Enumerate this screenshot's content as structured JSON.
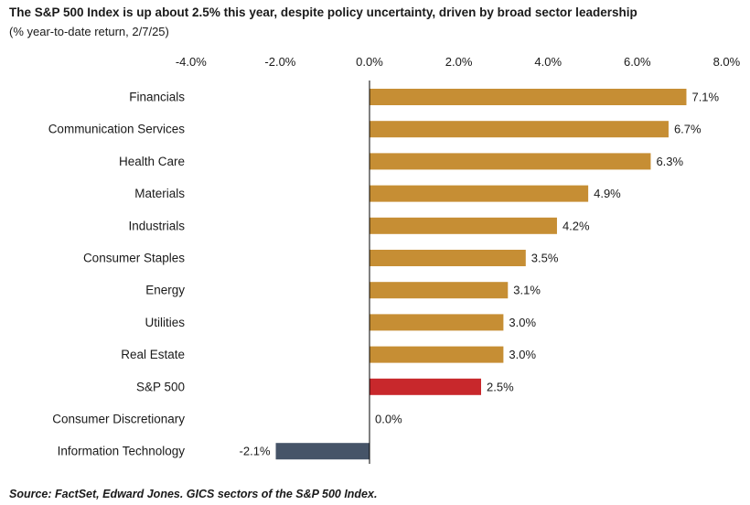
{
  "title": "The S&P 500 Index is up about 2.5% this year, despite policy uncertainty, driven by broad sector leadership",
  "subtitle": "(% year-to-date return, 2/7/25)",
  "source": "Source: FactSet, Edward Jones. GICS sectors of the S&P 500 Index.",
  "colors": {
    "sector": "#C68E34",
    "index": "#C8282C",
    "negative": "#465468",
    "axis": "#000000"
  },
  "chart_data": {
    "type": "bar",
    "orientation": "horizontal",
    "title": "The S&P 500 Index is up about 2.5% this year, despite policy uncertainty, driven by broad sector leadership",
    "subtitle": "(% year-to-date return, 2/7/25)",
    "categories": [
      "Financials",
      "Communication Services",
      "Health Care",
      "Materials",
      "Industrials",
      "Consumer Staples",
      "Energy",
      "Utilities",
      "Real Estate",
      "S&P 500",
      "Consumer Discretionary",
      "Information Technology"
    ],
    "values": [
      7.1,
      6.7,
      6.3,
      4.9,
      4.2,
      3.5,
      3.1,
      3.0,
      3.0,
      2.5,
      0.0,
      -2.1
    ],
    "data_labels": [
      "7.1%",
      "6.7%",
      "6.3%",
      "4.9%",
      "4.2%",
      "3.5%",
      "3.1%",
      "3.0%",
      "3.0%",
      "2.5%",
      "0.0%",
      "-2.1%"
    ],
    "bar_colors": [
      "sector",
      "sector",
      "sector",
      "sector",
      "sector",
      "sector",
      "sector",
      "sector",
      "sector",
      "index",
      "sector",
      "negative"
    ],
    "xlim": [
      -4.0,
      8.0
    ],
    "xticks": [
      -4,
      -2,
      0,
      2,
      4,
      6,
      8
    ],
    "xtick_labels": [
      "-4.0%",
      "-2.0%",
      "0.0%",
      "2.0%",
      "4.0%",
      "6.0%",
      "8.0%"
    ],
    "axis_position": "top",
    "grid": false,
    "legend": "none"
  }
}
